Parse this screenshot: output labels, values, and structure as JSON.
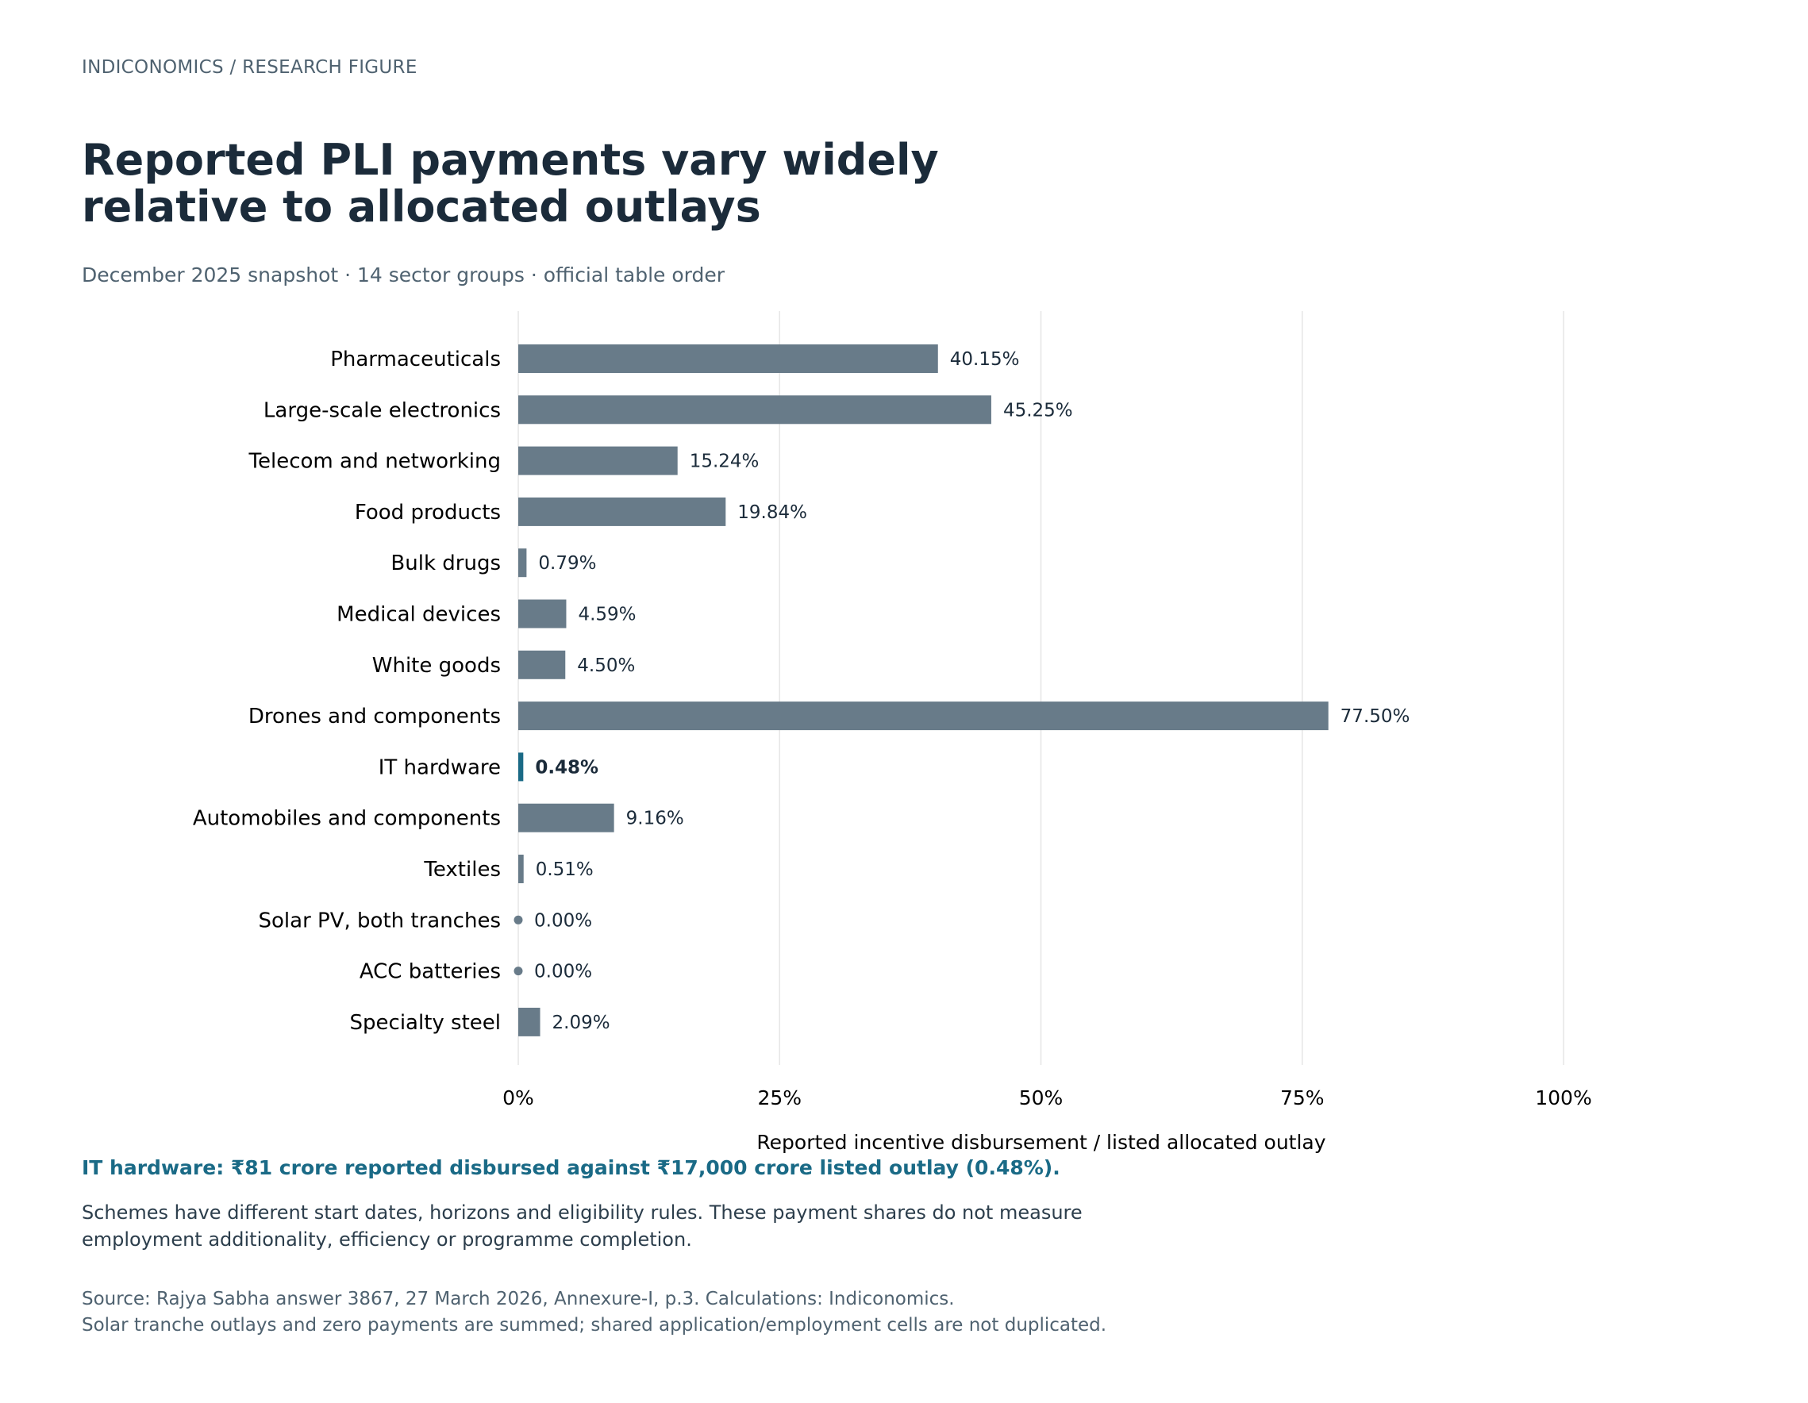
{
  "header": {
    "kicker": "INDICONOMICS  /  RESEARCH FIGURE",
    "title": "Reported PLI payments vary widely relative to allocated outlays",
    "subtitle": "December 2025 snapshot · 14 sector groups · official table order"
  },
  "chart_data": {
    "type": "bar",
    "orientation": "horizontal",
    "categories": [
      "Pharmaceuticals",
      "Large-scale electronics",
      "Telecom and networking",
      "Food products",
      "Bulk drugs",
      "Medical devices",
      "White goods",
      "Drones and components",
      "IT hardware",
      "Automobiles and components",
      "Textiles",
      "Solar PV, both tranches",
      "ACC batteries",
      "Specialty steel"
    ],
    "values": [
      40.15,
      45.25,
      15.24,
      19.84,
      0.79,
      4.59,
      4.5,
      77.5,
      0.48,
      9.16,
      0.51,
      0.0,
      0.0,
      2.09
    ],
    "data_labels": [
      "40.15%",
      "45.25%",
      "15.24%",
      "19.84%",
      "0.79%",
      "4.59%",
      "4.50%",
      "77.50%",
      "0.48%",
      "9.16%",
      "0.51%",
      "0.00%",
      "0.00%",
      "2.09%"
    ],
    "highlight": "IT hardware",
    "xlabel": "Reported incentive disbursement / listed allocated outlay",
    "ylabel": "",
    "xlim": [
      0,
      100
    ],
    "xticks": [
      0,
      25,
      50,
      75,
      100
    ],
    "xtick_labels": [
      "0%",
      "25%",
      "50%",
      "75%",
      "100%"
    ],
    "grid": "vertical",
    "colors": {
      "bar": "#687b89",
      "highlight": "#1a6a86",
      "grid": "#e6e6e6",
      "label": "#1b2b3a"
    }
  },
  "callout": "IT hardware: ₹81 crore reported disbursed against ₹17,000 crore listed outlay (0.48%).",
  "note": "Schemes have different start dates, horizons and eligibility rules. These payment shares do not measure employment additionality, efficiency or programme completion.",
  "source": {
    "line1": "Source: Rajya Sabha answer 3867, 27 March 2026, Annexure-I, p.3. Calculations: Indiconomics.",
    "line2": "Solar tranche outlays and zero payments are summed; shared application/employment cells are not duplicated."
  }
}
